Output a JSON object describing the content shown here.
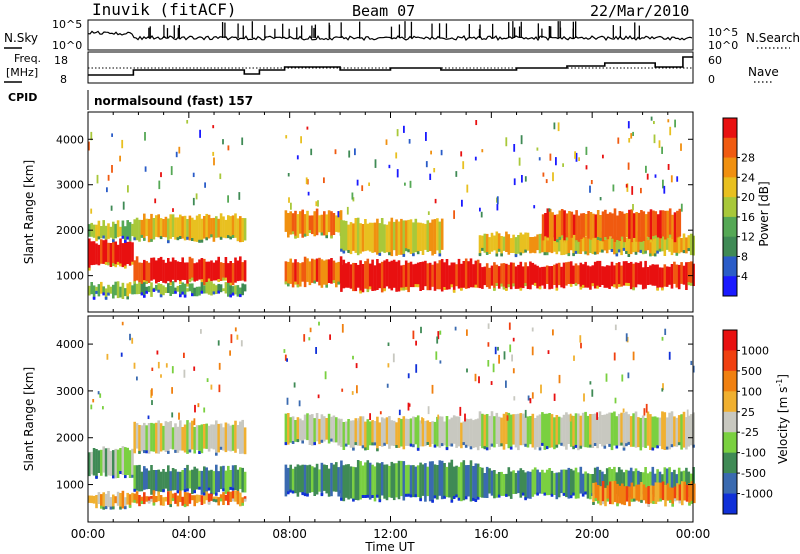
{
  "header": {
    "station": "Inuvik (fitACF)",
    "beam": "Beam 07",
    "date": "22/Mar/2010"
  },
  "panels": {
    "nsky": {
      "label": "N.Sky",
      "right_label": "N.Search",
      "tick_top": "10^5",
      "tick_bottom": "10^0",
      "right_tick_top": "10^5",
      "right_tick_bottom": "10^0"
    },
    "freq": {
      "label_line1": "Freq.",
      "label_line2": "[MHz]",
      "right_label": "Nave",
      "ticks_left": [
        "18",
        "8"
      ],
      "ticks_right": [
        "60",
        "0"
      ]
    },
    "cpid": {
      "label": "CPID",
      "text": "normalsound (fast) 157"
    }
  },
  "chart_data": [
    {
      "type": "heatmap",
      "name": "power",
      "ylabel": "Slant Range [km]",
      "xlabel": "Time UT",
      "x_ticks": [
        "00:00",
        "04:00",
        "08:00",
        "12:00",
        "16:00",
        "20:00",
        "00:00"
      ],
      "y_ticks": [
        1000,
        2000,
        3000,
        4000
      ],
      "ylim": [
        200,
        4600
      ],
      "xlim_hours": [
        0,
        24
      ],
      "colorbar": {
        "label": "Power [dB]",
        "ticks": [
          "4",
          "8",
          "12",
          "16",
          "20",
          "24",
          "28"
        ],
        "colors": [
          "#1a1aff",
          "#2a5cc8",
          "#3f8a55",
          "#55a855",
          "#a8c83a",
          "#e8c020",
          "#f09010",
          "#f05a10",
          "#e81010"
        ]
      },
      "bands": [
        {
          "start": 0.0,
          "end": 1.8,
          "low": 1200,
          "high": 1750,
          "level": 8
        },
        {
          "start": 0.0,
          "end": 1.8,
          "low": 550,
          "high": 800,
          "level": 4
        },
        {
          "start": 0.0,
          "end": 1.8,
          "low": 1800,
          "high": 2150,
          "level": 4
        },
        {
          "start": 1.8,
          "end": 6.2,
          "low": 850,
          "high": 1350,
          "level": 8
        },
        {
          "start": 1.8,
          "end": 6.2,
          "low": 1800,
          "high": 2300,
          "level": 5
        },
        {
          "start": 1.8,
          "end": 6.2,
          "low": 600,
          "high": 800,
          "level": 3
        },
        {
          "start": 7.8,
          "end": 10.0,
          "low": 800,
          "high": 1350,
          "level": 7
        },
        {
          "start": 7.8,
          "end": 10.0,
          "low": 1900,
          "high": 2400,
          "level": 6
        },
        {
          "start": 10.0,
          "end": 15.5,
          "low": 700,
          "high": 1300,
          "level": 8
        },
        {
          "start": 10.0,
          "end": 14.0,
          "low": 1500,
          "high": 2200,
          "level": 5
        },
        {
          "start": 15.5,
          "end": 24.0,
          "low": 750,
          "high": 1250,
          "level": 8
        },
        {
          "start": 15.5,
          "end": 24.0,
          "low": 1500,
          "high": 1900,
          "level": 5
        },
        {
          "start": 18.0,
          "end": 23.5,
          "low": 1800,
          "high": 2400,
          "level": 7
        }
      ]
    },
    {
      "type": "heatmap",
      "name": "velocity",
      "ylabel": "Slant Range [km]",
      "xlabel": "Time UT",
      "x_ticks": [
        "00:00",
        "04:00",
        "08:00",
        "12:00",
        "16:00",
        "20:00",
        "00:00"
      ],
      "y_ticks": [
        1000,
        2000,
        3000,
        4000
      ],
      "ylim": [
        200,
        4600
      ],
      "xlim_hours": [
        0,
        24
      ],
      "colorbar": {
        "label": "Velocity [m s^-1]",
        "ticks": [
          "1000",
          "500",
          "100",
          "25",
          "-25",
          "-100",
          "-500",
          "-1000"
        ],
        "colors": [
          "#1030d8",
          "#3a6ab0",
          "#3f8a55",
          "#7ad040",
          "#c8c8c0",
          "#f0b030",
          "#f08010",
          "#f04010",
          "#e81010"
        ]
      },
      "bands": [
        {
          "start": 0.0,
          "end": 1.8,
          "low": 1200,
          "high": 1750,
          "level": 3
        },
        {
          "start": 0.0,
          "end": 1.8,
          "low": 550,
          "high": 800,
          "level": 5
        },
        {
          "start": 1.8,
          "end": 6.2,
          "low": 850,
          "high": 1350,
          "level": 2
        },
        {
          "start": 1.8,
          "end": 6.2,
          "low": 1700,
          "high": 2300,
          "level": 4
        },
        {
          "start": 1.8,
          "end": 6.2,
          "low": 600,
          "high": 800,
          "level": 6
        },
        {
          "start": 7.8,
          "end": 10.0,
          "low": 800,
          "high": 1400,
          "level": 2
        },
        {
          "start": 7.8,
          "end": 10.0,
          "low": 1900,
          "high": 2450,
          "level": 4
        },
        {
          "start": 10.0,
          "end": 15.5,
          "low": 700,
          "high": 1450,
          "level": 2
        },
        {
          "start": 10.0,
          "end": 15.5,
          "low": 1800,
          "high": 2400,
          "level": 4
        },
        {
          "start": 15.5,
          "end": 24.0,
          "low": 750,
          "high": 1300,
          "level": 2
        },
        {
          "start": 15.5,
          "end": 24.0,
          "low": 1800,
          "high": 2500,
          "level": 4
        },
        {
          "start": 20.0,
          "end": 24.0,
          "low": 600,
          "high": 1000,
          "level": 6
        }
      ]
    }
  ]
}
